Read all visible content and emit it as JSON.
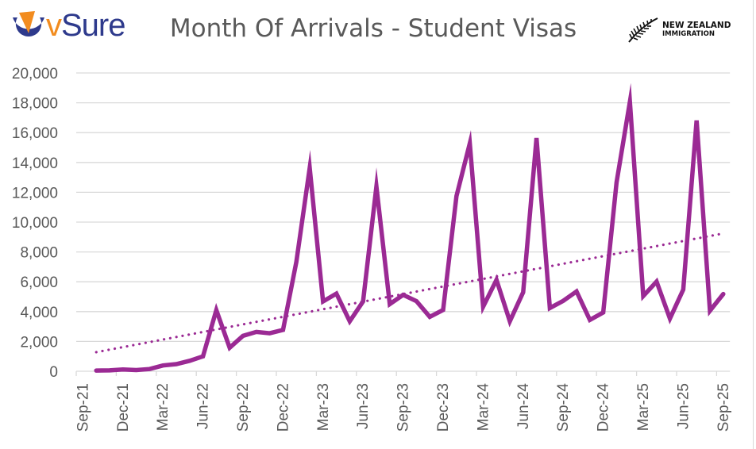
{
  "header": {
    "brand_logo": {
      "icon": "vsure-v-mark-icon",
      "text_v": "v",
      "text_rest": "Sure",
      "colors": {
        "orange": "#f28c1f",
        "navy": "#2e3a8c"
      }
    },
    "title": "Month Of Arrivals - Student Visas",
    "partner_logo": {
      "icon": "silver-fern-icon",
      "line1": "NEW ZEALAND",
      "line2": "IMMIGRATION"
    }
  },
  "chart_data": {
    "type": "line",
    "title": "Month Of Arrivals - Student Visas",
    "xlabel": "",
    "ylabel": "",
    "ylim": [
      0,
      20000
    ],
    "yticks": [
      "0",
      "2,000",
      "4,000",
      "6,000",
      "8,000",
      "10,000",
      "12,000",
      "14,000",
      "16,000",
      "18,000",
      "20,000"
    ],
    "xtick_labels": [
      "Sep-21",
      "Dec-21",
      "Mar-22",
      "Jun-22",
      "Sep-22",
      "Dec-22",
      "Mar-23",
      "Jun-23",
      "Sep-23",
      "Dec-23",
      "Mar-24",
      "Jun-24",
      "Sep-24",
      "Dec-24",
      "Mar-25",
      "Jun-25",
      "Sep-25"
    ],
    "grid": true,
    "legend": "none",
    "line_color": "#9b2a94",
    "categories": [
      "Sep-21",
      "Oct-21",
      "Nov-21",
      "Dec-21",
      "Jan-22",
      "Feb-22",
      "Mar-22",
      "Apr-22",
      "May-22",
      "Jun-22",
      "Jul-22",
      "Aug-22",
      "Sep-22",
      "Oct-22",
      "Nov-22",
      "Dec-22",
      "Jan-23",
      "Feb-23",
      "Mar-23",
      "Apr-23",
      "May-23",
      "Jun-23",
      "Jul-23",
      "Aug-23",
      "Sep-23",
      "Oct-23",
      "Nov-23",
      "Dec-23",
      "Jan-24",
      "Feb-24",
      "Mar-24",
      "Apr-24",
      "May-24",
      "Jun-24",
      "Jul-24",
      "Aug-24",
      "Sep-24",
      "Oct-24",
      "Nov-24",
      "Dec-24",
      "Jan-25",
      "Feb-25",
      "Mar-25",
      "Apr-25",
      "May-25",
      "Jun-25",
      "Jul-25",
      "Aug-25",
      "Sep-25"
    ],
    "series": [
      {
        "name": "Student Visa Arrivals",
        "style": "solid",
        "values": [
          null,
          50,
          60,
          120,
          80,
          150,
          390,
          480,
          700,
          1000,
          4100,
          1580,
          2380,
          2640,
          2550,
          2770,
          7340,
          13630,
          4680,
          5210,
          3350,
          4680,
          12390,
          4500,
          5120,
          4700,
          3650,
          4110,
          11740,
          15280,
          4330,
          6130,
          3350,
          5300,
          15640,
          4240,
          4720,
          5350,
          3440,
          3940,
          12660,
          18070,
          5040,
          6010,
          3530,
          5480,
          16820,
          4060,
          5180
        ]
      },
      {
        "name": "Linear trend",
        "style": "dotted",
        "start": {
          "category": "Oct-21",
          "value": 1280
        },
        "end": {
          "category": "Sep-25",
          "value": 9240
        }
      }
    ]
  }
}
